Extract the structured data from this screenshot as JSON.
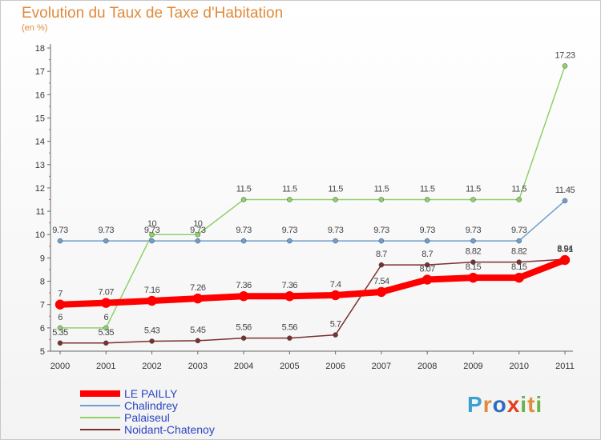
{
  "header": {
    "title": "Evolution du Taux de Taxe d'Habitation",
    "unit": "(en %)"
  },
  "brand": {
    "name": "Proxiti",
    "letters": [
      "P",
      "r",
      "o",
      "x",
      "i",
      "t",
      "i"
    ]
  },
  "chart_data": {
    "type": "line",
    "title": "Evolution du Taux de Taxe d'Habitation",
    "ylabel": "(en %)",
    "xlabel": "",
    "ylim": [
      5,
      18
    ],
    "yticks": [
      5,
      6,
      7,
      8,
      9,
      10,
      11,
      12,
      13,
      14,
      15,
      16,
      17,
      18
    ],
    "categories": [
      "2000",
      "2001",
      "2002",
      "2003",
      "2004",
      "2005",
      "2006",
      "2007",
      "2008",
      "2009",
      "2010",
      "2011"
    ],
    "series": [
      {
        "name": "LE PAILLY",
        "color": "#ff0000",
        "width": 8,
        "values": [
          7,
          7.07,
          7.16,
          7.26,
          7.36,
          7.36,
          7.4,
          7.54,
          8.07,
          8.15,
          8.15,
          8.91
        ],
        "labels": [
          "7",
          "7.07",
          "7.16",
          "7.26",
          "7.36",
          "7.36",
          "7.4",
          "7.54",
          "8.07",
          "8.15",
          "8.15",
          "8.91"
        ]
      },
      {
        "name": "Chalindrey",
        "color": "#6e9fd0",
        "width": 1.5,
        "values": [
          9.73,
          9.73,
          9.73,
          9.73,
          9.73,
          9.73,
          9.73,
          9.73,
          9.73,
          9.73,
          9.73,
          11.45
        ],
        "labels": [
          "9.73",
          "9.73",
          "9.73",
          "9.73",
          "9.73",
          "9.73",
          "9.73",
          "9.73",
          "9.73",
          "9.73",
          "9.73",
          "11.45"
        ]
      },
      {
        "name": "Palaiseul",
        "color": "#8fd16a",
        "width": 1.5,
        "values": [
          6,
          6,
          10,
          10,
          11.5,
          11.5,
          11.5,
          11.5,
          11.5,
          11.5,
          11.5,
          17.23
        ],
        "labels": [
          "6",
          "6",
          "10",
          "10",
          "11.5",
          "11.5",
          "11.5",
          "11.5",
          "11.5",
          "11.5",
          "11.5",
          "17.23"
        ]
      },
      {
        "name": "Noidant-Chatenoy",
        "color": "#7a3030",
        "width": 1.5,
        "values": [
          5.35,
          5.35,
          5.43,
          5.45,
          5.56,
          5.56,
          5.7,
          8.7,
          8.7,
          8.82,
          8.82,
          8.94
        ],
        "labels": [
          "5.35",
          "5.35",
          "5.43",
          "5.45",
          "5.56",
          "5.56",
          "5.7",
          "8.7",
          "8.7",
          "8.82",
          "8.82",
          "8.94"
        ]
      }
    ],
    "legend_position": "bottom-left",
    "grid": false
  }
}
